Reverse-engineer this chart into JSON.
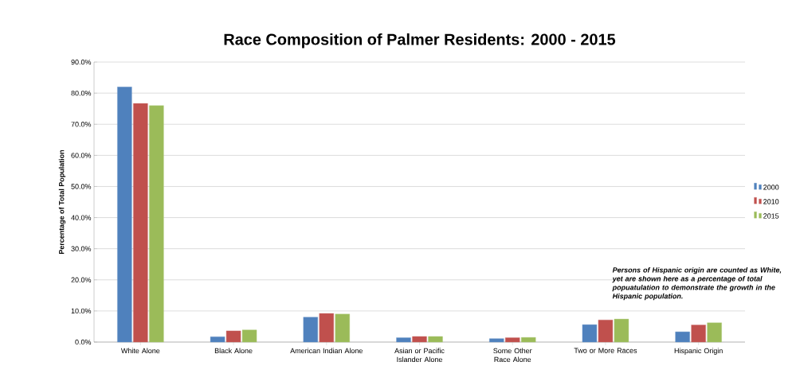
{
  "chart_data": {
    "type": "bar",
    "title": "Race Composition of Palmer Residents: 2000 - 2015",
    "ylabel": "Percentage of Total Population",
    "categories": [
      "White Alone",
      "Black Alone",
      "American Indian Alone",
      "Asian or Pacific Islander Alone",
      "Some Other Race Alone",
      "Two or More Races",
      "Hispanic Origin"
    ],
    "series": [
      {
        "name": "2000",
        "color": "#4f81bd",
        "values": [
          82.0,
          1.7,
          8.0,
          1.4,
          1.1,
          5.6,
          3.3
        ]
      },
      {
        "name": "2010",
        "color": "#c0504d",
        "values": [
          76.7,
          3.6,
          9.2,
          1.8,
          1.4,
          7.1,
          5.5
        ]
      },
      {
        "name": "2015",
        "color": "#9bbb59",
        "values": [
          76.0,
          3.9,
          9.0,
          1.8,
          1.5,
          7.4,
          6.2
        ]
      }
    ],
    "ylim": [
      0,
      90
    ],
    "yticks": [
      {
        "value": 0,
        "label": "0.0%"
      },
      {
        "value": 10,
        "label": "10.0%"
      },
      {
        "value": 20,
        "label": "20.0%"
      },
      {
        "value": 30,
        "label": "30.0%"
      },
      {
        "value": 40,
        "label": "40.0%"
      },
      {
        "value": 50,
        "label": "50.0%"
      },
      {
        "value": 60,
        "label": "60.0%"
      },
      {
        "value": 70,
        "label": "70.0%"
      },
      {
        "value": 80,
        "label": "80.0%"
      },
      {
        "value": 90,
        "label": "90.0%"
      }
    ],
    "grid": "y",
    "legend": "right",
    "annotations": [
      "Persons of Hispanic origin are counted as White, yet are shown here as a percentage of total popuatulation to demonstrate the growth in the Hispanic population."
    ]
  }
}
